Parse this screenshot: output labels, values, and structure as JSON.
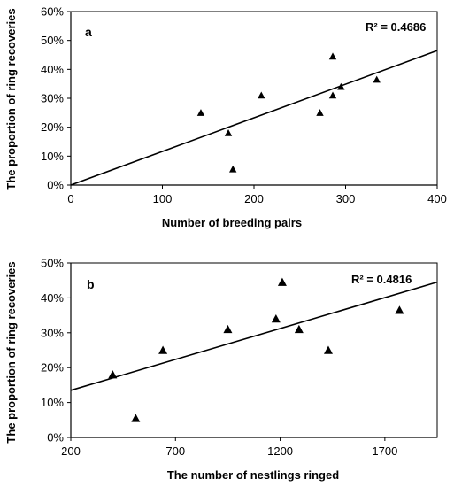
{
  "chart_data": [
    {
      "type": "scatter",
      "panel_label": "a",
      "annotation": "R² = 0.4686",
      "xlabel": "Number of breeding pairs",
      "ylabel": "The  proportion of ring recoveries",
      "xlim": [
        0,
        400
      ],
      "ylim": [
        0,
        60
      ],
      "x_ticks": [
        "0",
        "100",
        "200",
        "300",
        "400"
      ],
      "y_ticks": [
        "0%",
        "10%",
        "20%",
        "30%",
        "40%",
        "50%",
        "60%"
      ],
      "y_unit": "%",
      "marker": "triangle",
      "points": [
        {
          "x": 142,
          "y": 25
        },
        {
          "x": 172,
          "y": 18
        },
        {
          "x": 177,
          "y": 5.5
        },
        {
          "x": 208,
          "y": 31
        },
        {
          "x": 272,
          "y": 25
        },
        {
          "x": 286,
          "y": 31
        },
        {
          "x": 286,
          "y": 44.5
        },
        {
          "x": 295,
          "y": 34
        },
        {
          "x": 334,
          "y": 36.5
        }
      ],
      "trendline": {
        "x": [
          0,
          400
        ],
        "y": [
          0,
          46.5
        ]
      },
      "grid": false
    },
    {
      "type": "scatter",
      "panel_label": "b",
      "annotation": "R² = 0.4816",
      "xlabel": "The number of nestlings ringed",
      "ylabel": "The proportion of ring recoveries",
      "xlim": [
        200,
        1950
      ],
      "ylim": [
        0,
        50
      ],
      "x_ticks": [
        "200",
        "700",
        "1200",
        "1700"
      ],
      "y_ticks": [
        "0%",
        "10%",
        "20%",
        "30%",
        "40%",
        "50%"
      ],
      "y_unit": "%",
      "marker": "triangle",
      "points": [
        {
          "x": 400,
          "y": 18
        },
        {
          "x": 510,
          "y": 5.5
        },
        {
          "x": 640,
          "y": 25
        },
        {
          "x": 950,
          "y": 31
        },
        {
          "x": 1180,
          "y": 34
        },
        {
          "x": 1210,
          "y": 44.5
        },
        {
          "x": 1290,
          "y": 31
        },
        {
          "x": 1430,
          "y": 25
        },
        {
          "x": 1770,
          "y": 36.5
        }
      ],
      "trendline": {
        "x": [
          200,
          1950
        ],
        "y": [
          13.5,
          44.5
        ]
      },
      "grid": false
    }
  ]
}
